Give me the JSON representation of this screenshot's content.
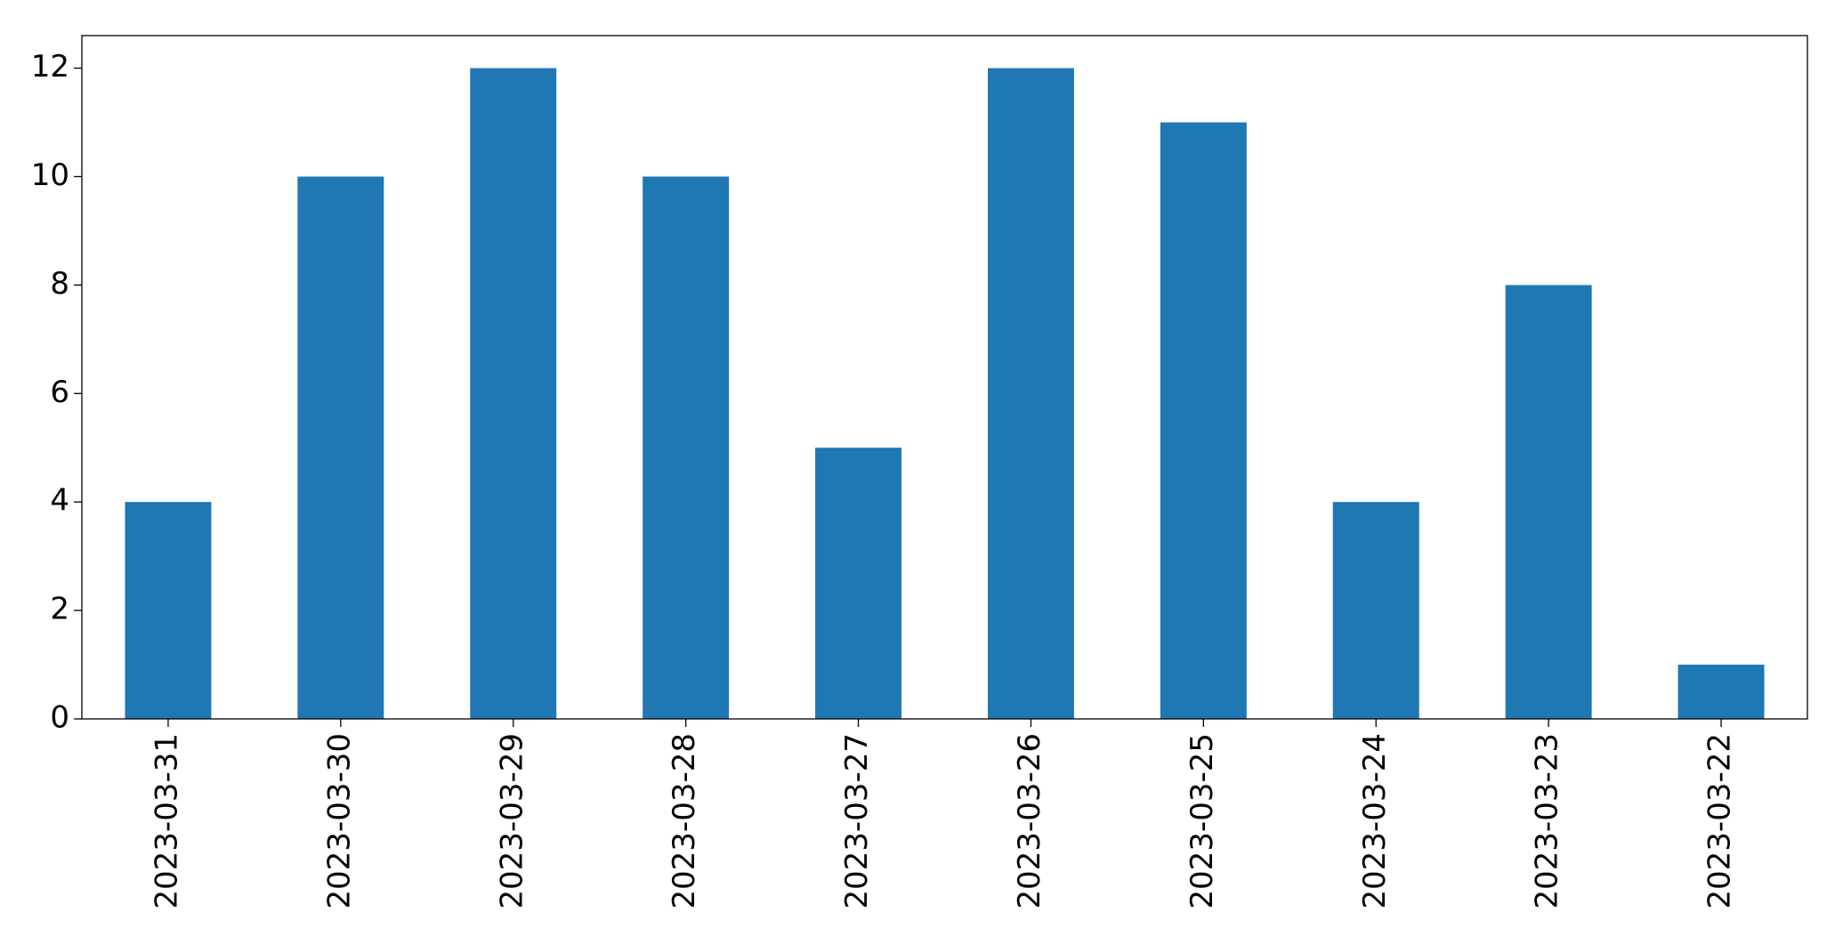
{
  "chart_data": {
    "type": "bar",
    "categories": [
      "2023-03-31",
      "2023-03-30",
      "2023-03-29",
      "2023-03-28",
      "2023-03-27",
      "2023-03-26",
      "2023-03-25",
      "2023-03-24",
      "2023-03-23",
      "2023-03-22"
    ],
    "values": [
      4,
      10,
      12,
      10,
      5,
      12,
      11,
      4,
      8,
      1
    ],
    "color": "#1f77b4",
    "ylim": [
      0,
      12.6
    ],
    "yticks": [
      0,
      2,
      4,
      6,
      8,
      10,
      12
    ],
    "grid": false
  }
}
